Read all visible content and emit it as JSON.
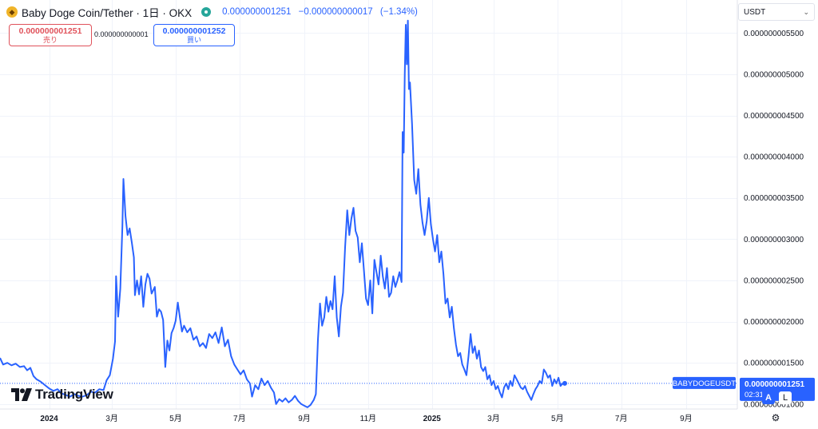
{
  "header": {
    "logo_icon": "baby-doge-coin-icon",
    "title": "Baby Doge Coin/Tether · 1日 · OKX",
    "status_icon": "market-open-dot-icon",
    "status_color": "#26a69a",
    "last_price": "0.000000001251",
    "change": "−0.000000000017",
    "change_pct": "(−1.34%)"
  },
  "trade": {
    "sell_price": "0.000000001251",
    "sell_label": "売り",
    "spread": "0.000000000001",
    "buy_price": "0.000000001252",
    "buy_label": "買い"
  },
  "currency_select": {
    "value": "USDT",
    "icon": "chevron-down-icon"
  },
  "branding": {
    "logo_icon": "tradingview-logo-icon",
    "name": "TradingView"
  },
  "controls": {
    "auto_label": "A",
    "log_label": "L",
    "settings_icon": "gear-icon"
  },
  "colors": {
    "line": "#2962ff",
    "sell": "#e0525b",
    "buy": "#2962ff",
    "badge": "#2962ff"
  },
  "chart_data": {
    "type": "line",
    "symbol": "BABYDOGEUSDT",
    "last_value": 1.251e-09,
    "last_value_label": "0.000000001251",
    "countdown": "02:31:55",
    "y_tick_labels": [
      "0.000000001000",
      "0.000000001500",
      "0.000000002000",
      "0.000000002500",
      "0.000000003000",
      "0.000000003500",
      "0.000000004000",
      "0.000000004500",
      "0.000000005000",
      "0.000000005500"
    ],
    "y_ticks": [
      1e-09,
      1.5e-09,
      2e-09,
      2.5e-09,
      3e-09,
      3.5e-09,
      4e-09,
      4.5e-09,
      5e-09,
      5.5e-09
    ],
    "ylim": [
      9.4e-10,
      5.9e-09
    ],
    "x_tick_labels": [
      "2024",
      "3月",
      "5月",
      "7月",
      "9月",
      "11月",
      "2025",
      "3月",
      "5月",
      "7月",
      "9月"
    ],
    "x_tick_dates": [
      "2024-01-01",
      "2024-03-01",
      "2024-05-01",
      "2024-07-01",
      "2024-09-01",
      "2024-11-01",
      "2025-01-01",
      "2025-03-01",
      "2025-05-01",
      "2025-07-01",
      "2025-09-01"
    ],
    "xlim": [
      "2023-11-15",
      "2025-10-20"
    ],
    "grid": true,
    "series": [
      {
        "values": [
          [
            "2023-11-15",
            1.56e-09
          ],
          [
            "2023-11-18",
            1.48e-09
          ],
          [
            "2023-11-22",
            1.5e-09
          ],
          [
            "2023-11-26",
            1.47e-09
          ],
          [
            "2023-11-30",
            1.49e-09
          ],
          [
            "2023-12-04",
            1.45e-09
          ],
          [
            "2023-12-08",
            1.46e-09
          ],
          [
            "2023-12-11",
            1.41e-09
          ],
          [
            "2023-12-14",
            1.44e-09
          ],
          [
            "2023-12-17",
            1.34e-09
          ],
          [
            "2023-12-20",
            1.3e-09
          ],
          [
            "2023-12-24",
            1.27e-09
          ],
          [
            "2023-12-28",
            1.23e-09
          ],
          [
            "2024-01-01",
            1.19e-09
          ],
          [
            "2024-01-05",
            1.16e-09
          ],
          [
            "2024-01-09",
            1.18e-09
          ],
          [
            "2024-01-13",
            1.13e-09
          ],
          [
            "2024-01-17",
            1.11e-09
          ],
          [
            "2024-01-21",
            1.09e-09
          ],
          [
            "2024-01-25",
            1.12e-09
          ],
          [
            "2024-01-29",
            1.1e-09
          ],
          [
            "2024-02-02",
            1.09e-09
          ],
          [
            "2024-02-06",
            1.11e-09
          ],
          [
            "2024-02-10",
            1.15e-09
          ],
          [
            "2024-02-14",
            1.14e-09
          ],
          [
            "2024-02-18",
            1.18e-09
          ],
          [
            "2024-02-22",
            1.17e-09
          ],
          [
            "2024-02-25",
            1.29e-09
          ],
          [
            "2024-02-28",
            1.35e-09
          ],
          [
            "2024-03-02",
            1.55e-09
          ],
          [
            "2024-03-04",
            1.76e-09
          ],
          [
            "2024-03-05",
            2.55e-09
          ],
          [
            "2024-03-07",
            2.06e-09
          ],
          [
            "2024-03-09",
            2.4e-09
          ],
          [
            "2024-03-11",
            3.15e-09
          ],
          [
            "2024-03-12",
            3.73e-09
          ],
          [
            "2024-03-14",
            3.28e-09
          ],
          [
            "2024-03-16",
            3.05e-09
          ],
          [
            "2024-03-18",
            3.13e-09
          ],
          [
            "2024-03-20",
            2.96e-09
          ],
          [
            "2024-03-22",
            2.78e-09
          ],
          [
            "2024-03-23",
            2.32e-09
          ],
          [
            "2024-03-25",
            2.5e-09
          ],
          [
            "2024-03-27",
            2.33e-09
          ],
          [
            "2024-03-29",
            2.55e-09
          ],
          [
            "2024-03-31",
            2.18e-09
          ],
          [
            "2024-04-02",
            2.45e-09
          ],
          [
            "2024-04-04",
            2.58e-09
          ],
          [
            "2024-04-06",
            2.52e-09
          ],
          [
            "2024-04-08",
            2.34e-09
          ],
          [
            "2024-04-11",
            2.42e-09
          ],
          [
            "2024-04-13",
            2.06e-09
          ],
          [
            "2024-04-15",
            2.15e-09
          ],
          [
            "2024-04-17",
            2.12e-09
          ],
          [
            "2024-04-19",
            2.02e-09
          ],
          [
            "2024-04-21",
            1.45e-09
          ],
          [
            "2024-04-23",
            1.77e-09
          ],
          [
            "2024-04-25",
            1.65e-09
          ],
          [
            "2024-04-27",
            1.86e-09
          ],
          [
            "2024-04-29",
            1.92e-09
          ],
          [
            "2024-05-01",
            2.01e-09
          ],
          [
            "2024-05-03",
            2.23e-09
          ],
          [
            "2024-05-05",
            2.05e-09
          ],
          [
            "2024-05-07",
            1.88e-09
          ],
          [
            "2024-05-09",
            1.95e-09
          ],
          [
            "2024-05-12",
            1.87e-09
          ],
          [
            "2024-05-15",
            1.92e-09
          ],
          [
            "2024-05-18",
            1.78e-09
          ],
          [
            "2024-05-21",
            1.82e-09
          ],
          [
            "2024-05-24",
            1.7e-09
          ],
          [
            "2024-05-27",
            1.74e-09
          ],
          [
            "2024-05-30",
            1.68e-09
          ],
          [
            "2024-06-02",
            1.85e-09
          ],
          [
            "2024-06-05",
            1.8e-09
          ],
          [
            "2024-06-08",
            1.87e-09
          ],
          [
            "2024-06-11",
            1.74e-09
          ],
          [
            "2024-06-14",
            1.93e-09
          ],
          [
            "2024-06-17",
            1.7e-09
          ],
          [
            "2024-06-20",
            1.78e-09
          ],
          [
            "2024-06-23",
            1.58e-09
          ],
          [
            "2024-06-26",
            1.48e-09
          ],
          [
            "2024-06-29",
            1.42e-09
          ],
          [
            "2024-07-02",
            1.36e-09
          ],
          [
            "2024-07-05",
            1.41e-09
          ],
          [
            "2024-07-08",
            1.3e-09
          ],
          [
            "2024-07-11",
            1.25e-09
          ],
          [
            "2024-07-13",
            1.09e-09
          ],
          [
            "2024-07-16",
            1.23e-09
          ],
          [
            "2024-07-19",
            1.18e-09
          ],
          [
            "2024-07-22",
            1.31e-09
          ],
          [
            "2024-07-25",
            1.23e-09
          ],
          [
            "2024-07-28",
            1.28e-09
          ],
          [
            "2024-07-31",
            1.2e-09
          ],
          [
            "2024-08-03",
            1.14e-09
          ],
          [
            "2024-08-05",
            1e-09
          ],
          [
            "2024-08-08",
            1.06e-09
          ],
          [
            "2024-08-11",
            1.03e-09
          ],
          [
            "2024-08-14",
            1.07e-09
          ],
          [
            "2024-08-17",
            1.02e-09
          ],
          [
            "2024-08-20",
            1.05e-09
          ],
          [
            "2024-08-23",
            1.1e-09
          ],
          [
            "2024-08-26",
            1.04e-09
          ],
          [
            "2024-08-29",
            1e-09
          ],
          [
            "2024-09-01",
            9.8e-10
          ],
          [
            "2024-09-04",
            9.6e-10
          ],
          [
            "2024-09-07",
            9.9e-10
          ],
          [
            "2024-09-10",
            1.05e-09
          ],
          [
            "2024-09-12",
            1.12e-09
          ],
          [
            "2024-09-14",
            1.78e-09
          ],
          [
            "2024-09-16",
            2.22e-09
          ],
          [
            "2024-09-18",
            1.95e-09
          ],
          [
            "2024-09-20",
            2.05e-09
          ],
          [
            "2024-09-22",
            2.3e-09
          ],
          [
            "2024-09-24",
            2.12e-09
          ],
          [
            "2024-09-26",
            2.25e-09
          ],
          [
            "2024-09-28",
            2.15e-09
          ],
          [
            "2024-09-30",
            2.55e-09
          ],
          [
            "2024-10-02",
            2.05e-09
          ],
          [
            "2024-10-04",
            1.82e-09
          ],
          [
            "2024-10-06",
            2.18e-09
          ],
          [
            "2024-10-08",
            2.35e-09
          ],
          [
            "2024-10-10",
            2.9e-09
          ],
          [
            "2024-10-12",
            3.35e-09
          ],
          [
            "2024-10-14",
            3.05e-09
          ],
          [
            "2024-10-16",
            3.25e-09
          ],
          [
            "2024-10-18",
            3.38e-09
          ],
          [
            "2024-10-20",
            3.1e-09
          ],
          [
            "2024-10-22",
            3.02e-09
          ],
          [
            "2024-10-24",
            2.72e-09
          ],
          [
            "2024-10-26",
            2.95e-09
          ],
          [
            "2024-10-28",
            2.62e-09
          ],
          [
            "2024-10-30",
            2.28e-09
          ],
          [
            "2024-11-01",
            2.2e-09
          ],
          [
            "2024-11-03",
            2.5e-09
          ],
          [
            "2024-11-05",
            2.1e-09
          ],
          [
            "2024-11-07",
            2.75e-09
          ],
          [
            "2024-11-09",
            2.6e-09
          ],
          [
            "2024-11-11",
            2.45e-09
          ],
          [
            "2024-11-13",
            2.8e-09
          ],
          [
            "2024-11-15",
            2.55e-09
          ],
          [
            "2024-11-17",
            2.4e-09
          ],
          [
            "2024-11-19",
            2.65e-09
          ],
          [
            "2024-11-21",
            2.3e-09
          ],
          [
            "2024-11-23",
            2.35e-09
          ],
          [
            "2024-11-25",
            2.55e-09
          ],
          [
            "2024-11-27",
            2.42e-09
          ],
          [
            "2024-11-29",
            2.5e-09
          ],
          [
            "2024-12-01",
            2.6e-09
          ],
          [
            "2024-12-03",
            2.48e-09
          ],
          [
            "2024-12-04",
            4.3e-09
          ],
          [
            "2024-12-05",
            4.05e-09
          ],
          [
            "2024-12-06",
            5e-09
          ],
          [
            "2024-12-07",
            5.6e-09
          ],
          [
            "2024-12-08",
            5.12e-09
          ],
          [
            "2024-12-09",
            5.65e-09
          ],
          [
            "2024-12-10",
            4.82e-09
          ],
          [
            "2024-12-11",
            4.9e-09
          ],
          [
            "2024-12-13",
            4.4e-09
          ],
          [
            "2024-12-15",
            3.72e-09
          ],
          [
            "2024-12-17",
            3.55e-09
          ],
          [
            "2024-12-19",
            3.85e-09
          ],
          [
            "2024-12-21",
            3.42e-09
          ],
          [
            "2024-12-23",
            3.2e-09
          ],
          [
            "2024-12-25",
            3.05e-09
          ],
          [
            "2024-12-27",
            3.22e-09
          ],
          [
            "2024-12-29",
            3.5e-09
          ],
          [
            "2024-12-31",
            3.18e-09
          ],
          [
            "2025-01-02",
            3e-09
          ],
          [
            "2025-01-04",
            2.85e-09
          ],
          [
            "2025-01-06",
            3.05e-09
          ],
          [
            "2025-01-08",
            2.72e-09
          ],
          [
            "2025-01-10",
            2.85e-09
          ],
          [
            "2025-01-12",
            2.58e-09
          ],
          [
            "2025-01-14",
            2.22e-09
          ],
          [
            "2025-01-16",
            2.28e-09
          ],
          [
            "2025-01-18",
            2.05e-09
          ],
          [
            "2025-01-20",
            2.18e-09
          ],
          [
            "2025-01-22",
            1.92e-09
          ],
          [
            "2025-01-24",
            1.72e-09
          ],
          [
            "2025-01-26",
            1.58e-09
          ],
          [
            "2025-01-28",
            1.62e-09
          ],
          [
            "2025-01-30",
            1.48e-09
          ],
          [
            "2025-02-01",
            1.42e-09
          ],
          [
            "2025-02-03",
            1.35e-09
          ],
          [
            "2025-02-05",
            1.58e-09
          ],
          [
            "2025-02-07",
            1.85e-09
          ],
          [
            "2025-02-09",
            1.62e-09
          ],
          [
            "2025-02-11",
            1.7e-09
          ],
          [
            "2025-02-13",
            1.55e-09
          ],
          [
            "2025-02-15",
            1.65e-09
          ],
          [
            "2025-02-17",
            1.45e-09
          ],
          [
            "2025-02-19",
            1.4e-09
          ],
          [
            "2025-02-21",
            1.45e-09
          ],
          [
            "2025-02-23",
            1.3e-09
          ],
          [
            "2025-02-25",
            1.35e-09
          ],
          [
            "2025-02-27",
            1.23e-09
          ],
          [
            "2025-03-01",
            1.28e-09
          ],
          [
            "2025-03-03",
            1.18e-09
          ],
          [
            "2025-03-05",
            1.22e-09
          ],
          [
            "2025-03-07",
            1.14e-09
          ],
          [
            "2025-03-09",
            1.08e-09
          ],
          [
            "2025-03-11",
            1.2e-09
          ],
          [
            "2025-03-13",
            1.25e-09
          ],
          [
            "2025-03-15",
            1.18e-09
          ],
          [
            "2025-03-17",
            1.28e-09
          ],
          [
            "2025-03-19",
            1.22e-09
          ],
          [
            "2025-03-21",
            1.35e-09
          ],
          [
            "2025-03-23",
            1.3e-09
          ],
          [
            "2025-03-25",
            1.25e-09
          ],
          [
            "2025-03-27",
            1.2e-09
          ],
          [
            "2025-03-29",
            1.18e-09
          ],
          [
            "2025-03-31",
            1.22e-09
          ],
          [
            "2025-04-02",
            1.15e-09
          ],
          [
            "2025-04-04",
            1.1e-09
          ],
          [
            "2025-04-06",
            1.05e-09
          ],
          [
            "2025-04-08",
            1.12e-09
          ],
          [
            "2025-04-10",
            1.18e-09
          ],
          [
            "2025-04-12",
            1.22e-09
          ],
          [
            "2025-04-14",
            1.28e-09
          ],
          [
            "2025-04-16",
            1.25e-09
          ],
          [
            "2025-04-18",
            1.42e-09
          ],
          [
            "2025-04-20",
            1.38e-09
          ],
          [
            "2025-04-22",
            1.32e-09
          ],
          [
            "2025-04-24",
            1.35e-09
          ],
          [
            "2025-04-26",
            1.22e-09
          ],
          [
            "2025-04-28",
            1.3e-09
          ],
          [
            "2025-04-30",
            1.25e-09
          ],
          [
            "2025-05-02",
            1.32e-09
          ],
          [
            "2025-05-04",
            1.22e-09
          ],
          [
            "2025-05-06",
            1.25e-09
          ],
          [
            "2025-05-08",
            1.251e-09
          ]
        ]
      }
    ]
  }
}
